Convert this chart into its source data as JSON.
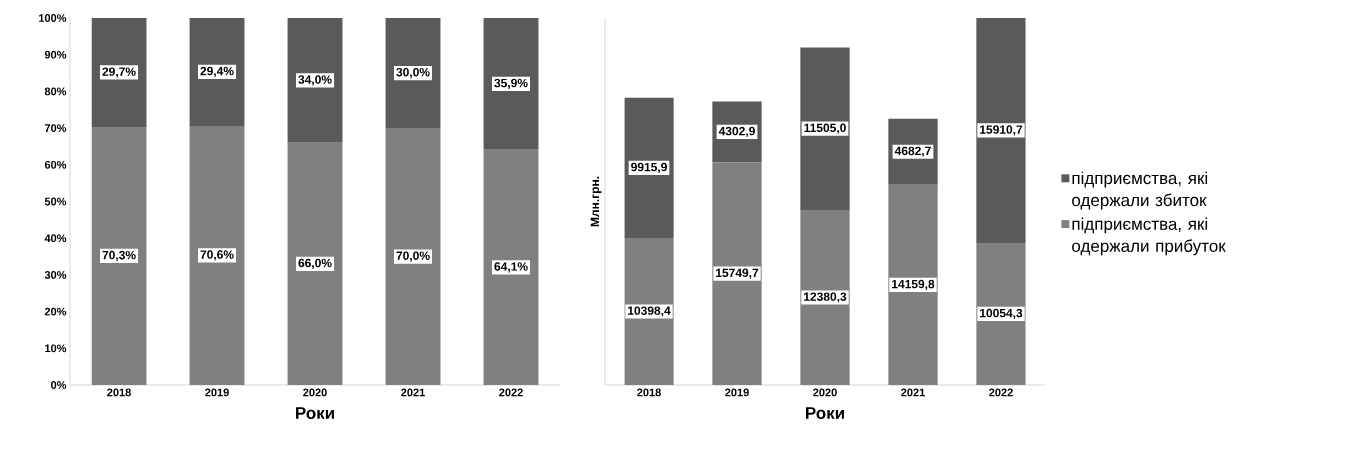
{
  "chart_data": [
    {
      "type": "bar",
      "stacked": true,
      "xlabel": "Роки",
      "categories": [
        "2018",
        "2019",
        "2020",
        "2021",
        "2022"
      ],
      "ylim": [
        0,
        100
      ],
      "yticks": [
        {
          "value": 0,
          "label": "0%"
        },
        {
          "value": 10,
          "label": "10%"
        },
        {
          "value": 20,
          "label": "20%"
        },
        {
          "value": 30,
          "label": "30%"
        },
        {
          "value": 40,
          "label": "40%"
        },
        {
          "value": 50,
          "label": "50%"
        },
        {
          "value": 60,
          "label": "60%"
        },
        {
          "value": 70,
          "label": "70%"
        },
        {
          "value": 80,
          "label": "80%"
        },
        {
          "value": 90,
          "label": "90%"
        },
        {
          "value": 100,
          "label": "100%"
        }
      ],
      "series": [
        {
          "color": "#808080",
          "values": [
            70.3,
            70.6,
            66.0,
            70.0,
            64.1
          ],
          "value_labels": [
            "70,3%",
            "70,6%",
            "66,0%",
            "70,0%",
            "64,1%"
          ]
        },
        {
          "color": "#5a5a5a",
          "values": [
            29.7,
            29.4,
            34.0,
            30.0,
            35.9
          ],
          "value_labels": [
            "29,7%",
            "29,4%",
            "34,0%",
            "30,0%",
            "35,9%"
          ]
        }
      ]
    },
    {
      "type": "bar",
      "stacked": true,
      "xlabel": "Роки",
      "ylabel": "Млн.грн.",
      "legend": "right",
      "categories": [
        "2018",
        "2019",
        "2020",
        "2021",
        "2022"
      ],
      "series": [
        {
          "name": "підприємства, які одержали прибуток",
          "color": "#808080",
          "values": [
            10398.4,
            15749.7,
            12380.3,
            14159.8,
            10054.3
          ],
          "value_labels": [
            "10398,4",
            "15749,7",
            "12380,3",
            "14159,8",
            "10054,3"
          ]
        },
        {
          "name": "підприємства, які одержали збиток",
          "color": "#5a5a5a",
          "values": [
            9915.9,
            4302.9,
            11505.0,
            4682.7,
            15910.7
          ],
          "value_labels": [
            "9915,9",
            "4302,9",
            "11505,0",
            "4682,7",
            "15910,7"
          ]
        }
      ]
    }
  ]
}
